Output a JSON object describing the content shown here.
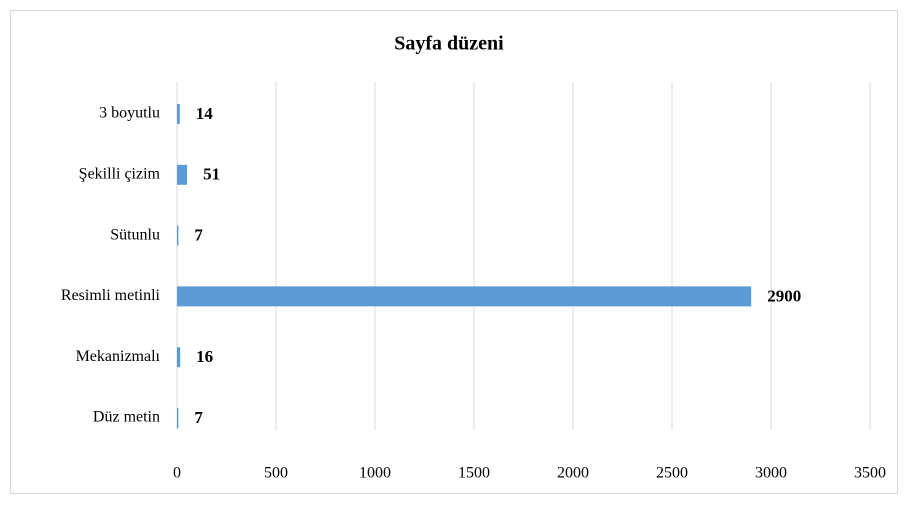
{
  "chart_data": {
    "type": "bar",
    "orientation": "horizontal",
    "title": "Sayfa düzeni",
    "categories": [
      "3 boyutlu",
      "Şekilli çizim",
      "Sütunlu",
      "Resimli metinli",
      "Mekanizmalı",
      "Düz metin"
    ],
    "values": [
      14,
      51,
      7,
      2900,
      16,
      7
    ],
    "color": "#5b9bd5",
    "xlim": [
      0,
      3500
    ],
    "xticks": [
      0,
      500,
      1000,
      1500,
      2000,
      2500,
      3000,
      3500
    ],
    "grid": true
  }
}
